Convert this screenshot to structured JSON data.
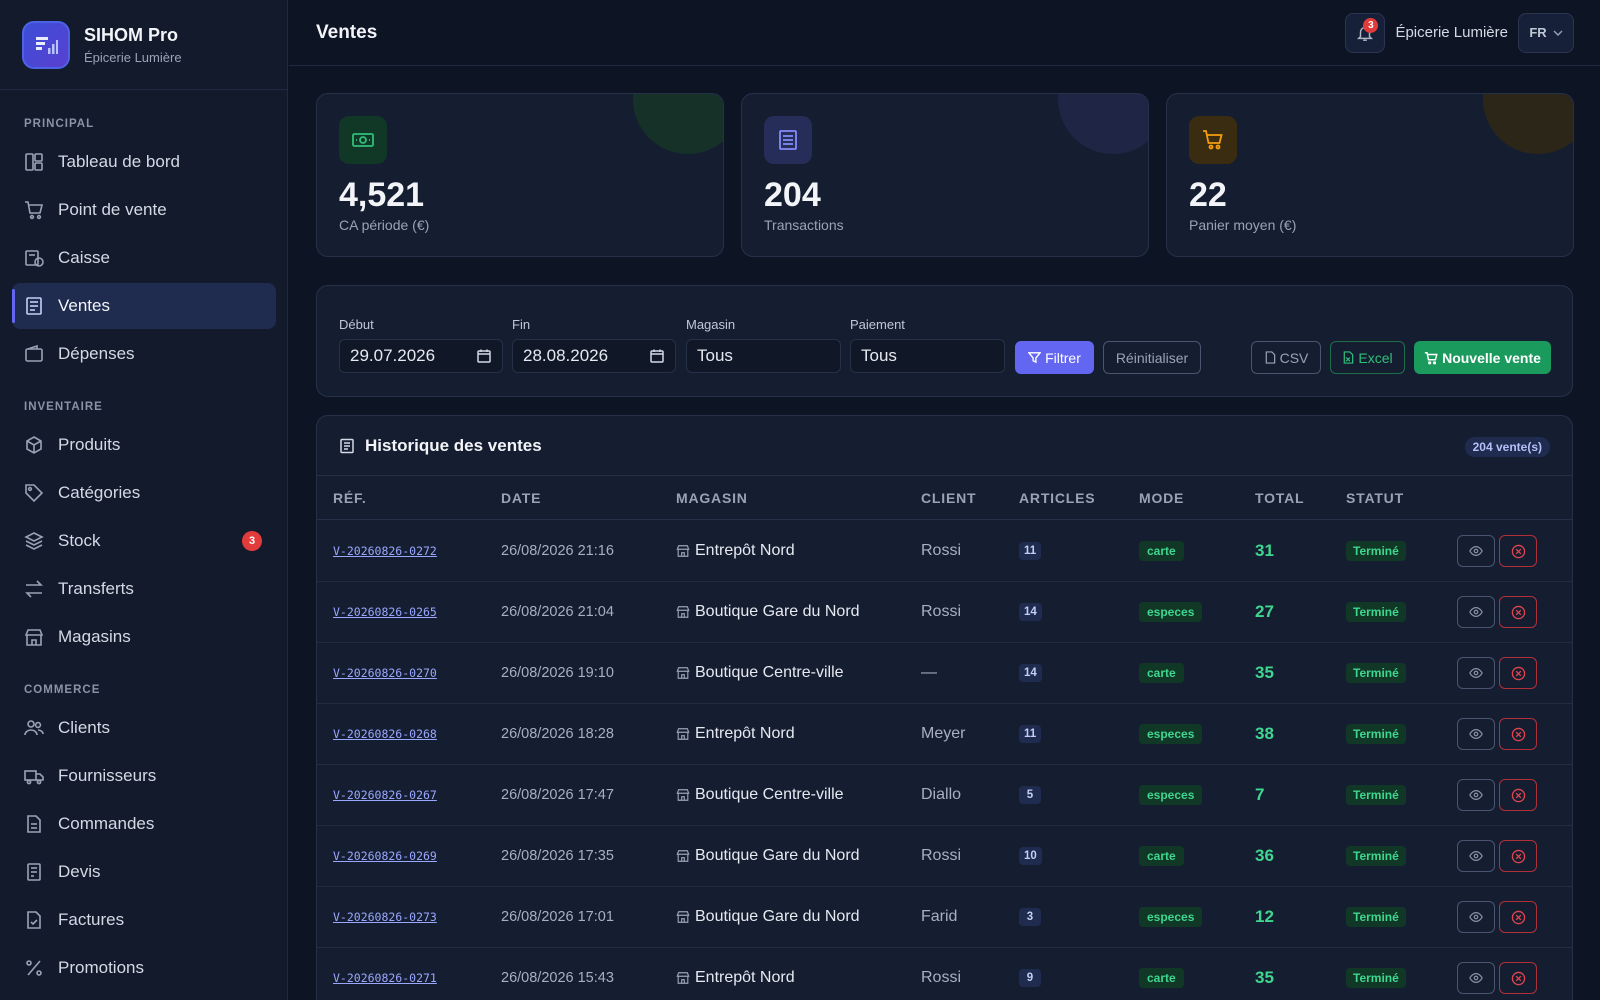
{
  "app": {
    "name": "SIHOM Pro",
    "store": "Épicerie Lumière"
  },
  "sidebar": {
    "sections": [
      {
        "title": "PRINCIPAL",
        "items": [
          {
            "label": "Tableau de bord",
            "icon": "dashboard-icon"
          },
          {
            "label": "Point de vente",
            "icon": "cart-icon"
          },
          {
            "label": "Caisse",
            "icon": "cash-register-icon"
          },
          {
            "label": "Ventes",
            "icon": "receipt-icon",
            "active": true
          },
          {
            "label": "Dépenses",
            "icon": "wallet-icon"
          }
        ]
      },
      {
        "title": "INVENTAIRE",
        "items": [
          {
            "label": "Produits",
            "icon": "box-icon"
          },
          {
            "label": "Catégories",
            "icon": "tag-icon"
          },
          {
            "label": "Stock",
            "icon": "layers-icon",
            "badge": "3"
          },
          {
            "label": "Transferts",
            "icon": "transfer-icon"
          },
          {
            "label": "Magasins",
            "icon": "store-icon"
          }
        ]
      },
      {
        "title": "COMMERCE",
        "items": [
          {
            "label": "Clients",
            "icon": "users-icon"
          },
          {
            "label": "Fournisseurs",
            "icon": "truck-icon"
          },
          {
            "label": "Commandes",
            "icon": "order-icon"
          },
          {
            "label": "Devis",
            "icon": "quote-icon"
          },
          {
            "label": "Factures",
            "icon": "invoice-icon"
          },
          {
            "label": "Promotions",
            "icon": "percent-icon"
          }
        ]
      }
    ]
  },
  "header": {
    "title": "Ventes",
    "notifications": "3",
    "store": "Épicerie Lumière",
    "lang": "FR"
  },
  "stats": [
    {
      "value": "4,521",
      "label": "CA période (€)",
      "icon": "money-icon",
      "color": "#2fbf7a"
    },
    {
      "value": "204",
      "label": "Transactions",
      "icon": "receipt-icon",
      "color": "#818cf8"
    },
    {
      "value": "22",
      "label": "Panier moyen (€)",
      "icon": "cart-icon",
      "color": "#f59e0b"
    }
  ],
  "filters": {
    "start_label": "Début",
    "start_value": "29.07.2026",
    "end_label": "Fin",
    "end_value": "28.08.2026",
    "store_label": "Magasin",
    "store_value": "Tous",
    "payment_label": "Paiement",
    "payment_value": "Tous",
    "filter_btn": "Filtrer",
    "reset_btn": "Réinitialiser",
    "csv_btn": "CSV",
    "excel_btn": "Excel",
    "new_btn": "Nouvelle vente"
  },
  "history": {
    "title": "Historique des ventes",
    "count": "204 vente(s)",
    "columns": [
      "RÉF.",
      "DATE",
      "MAGASIN",
      "CLIENT",
      "ARTICLES",
      "MODE",
      "TOTAL",
      "STATUT"
    ],
    "rows": [
      {
        "ref": "V-20260826-0272",
        "date": "26/08/2026 21:16",
        "store": "Entrepôt Nord",
        "client": "Rossi",
        "articles": "11",
        "mode": "carte",
        "total": "31",
        "status": "Terminé"
      },
      {
        "ref": "V-20260826-0265",
        "date": "26/08/2026 21:04",
        "store": "Boutique Gare du Nord",
        "client": "Rossi",
        "articles": "14",
        "mode": "especes",
        "total": "27",
        "status": "Terminé"
      },
      {
        "ref": "V-20260826-0270",
        "date": "26/08/2026 19:10",
        "store": "Boutique Centre-ville",
        "client": "—",
        "articles": "14",
        "mode": "carte",
        "total": "35",
        "status": "Terminé"
      },
      {
        "ref": "V-20260826-0268",
        "date": "26/08/2026 18:28",
        "store": "Entrepôt Nord",
        "client": "Meyer",
        "articles": "11",
        "mode": "especes",
        "total": "38",
        "status": "Terminé"
      },
      {
        "ref": "V-20260826-0267",
        "date": "26/08/2026 17:47",
        "store": "Boutique Centre-ville",
        "client": "Diallo",
        "articles": "5",
        "mode": "especes",
        "total": "7",
        "status": "Terminé"
      },
      {
        "ref": "V-20260826-0269",
        "date": "26/08/2026 17:35",
        "store": "Boutique Gare du Nord",
        "client": "Rossi",
        "articles": "10",
        "mode": "carte",
        "total": "36",
        "status": "Terminé"
      },
      {
        "ref": "V-20260826-0273",
        "date": "26/08/2026 17:01",
        "store": "Boutique Gare du Nord",
        "client": "Farid",
        "articles": "3",
        "mode": "especes",
        "total": "12",
        "status": "Terminé"
      },
      {
        "ref": "V-20260826-0271",
        "date": "26/08/2026 15:43",
        "store": "Entrepôt Nord",
        "client": "Rossi",
        "articles": "9",
        "mode": "carte",
        "total": "35",
        "status": "Terminé"
      }
    ]
  }
}
